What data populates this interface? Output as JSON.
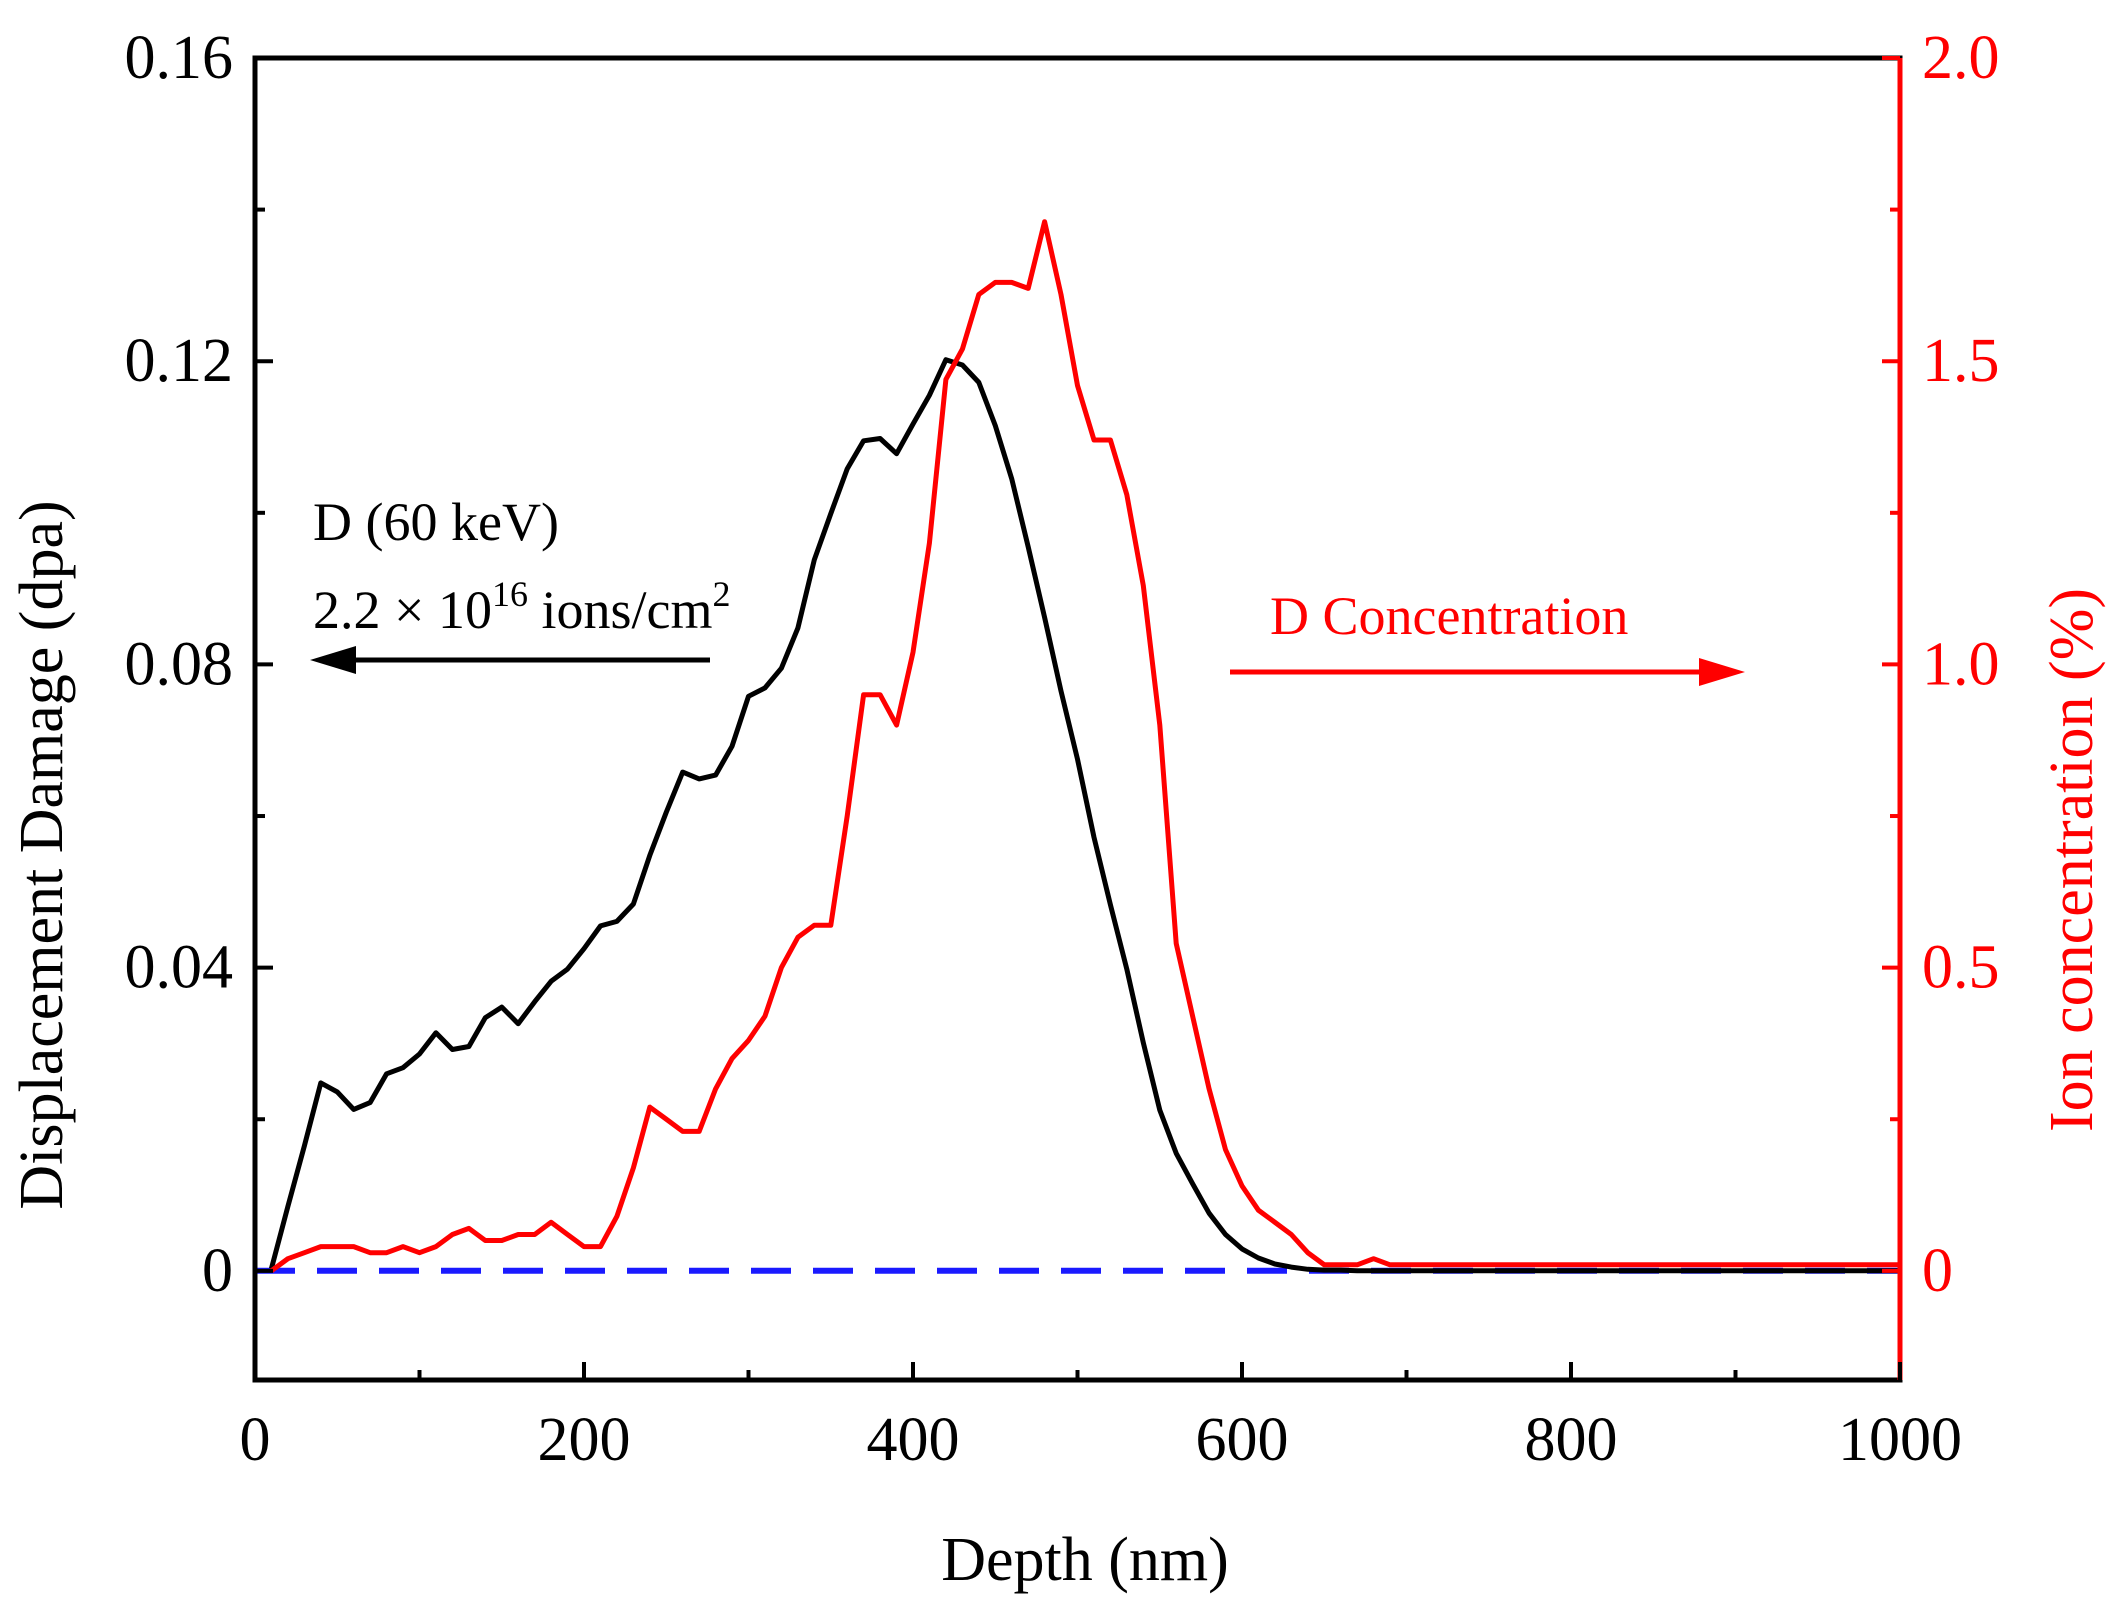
{
  "chart_data": {
    "type": "line",
    "title": "",
    "xlabel": "Depth (nm)",
    "ylabel": "Displacement Damage (dpa)",
    "y2label": "Ion concentration (%)",
    "xlim": [
      0,
      1000
    ],
    "ylim": [
      -0.0144,
      0.16
    ],
    "y2lim": [
      -0.18,
      2.0
    ],
    "xticks": [
      0,
      200,
      400,
      600,
      800,
      1000
    ],
    "xtick_labels": [
      "0",
      "200",
      "400",
      "600",
      "800",
      "1000"
    ],
    "yticks": [
      0,
      0.04,
      0.08,
      0.12,
      0.16
    ],
    "ytick_labels": [
      "0",
      "0.04",
      "0.08",
      "0.12",
      "0.16"
    ],
    "y2ticks": [
      0,
      0.5,
      1.0,
      1.5,
      2.0
    ],
    "y2tick_labels": [
      "0",
      "0.5",
      "1.0",
      "1.5",
      "2.0"
    ],
    "grid": false,
    "colors": {
      "damage": "#000000",
      "concentration": "#ff0000",
      "baseline": "#1a1aff",
      "frame": "#000000"
    },
    "series": [
      {
        "name": "Displacement Damage",
        "axis": "left",
        "color": "#000000",
        "x": [
          10,
          20,
          30,
          40,
          50,
          60,
          70,
          80,
          90,
          100,
          110,
          120,
          130,
          140,
          150,
          160,
          170,
          180,
          190,
          200,
          210,
          220,
          230,
          240,
          250,
          260,
          270,
          280,
          290,
          300,
          310,
          320,
          330,
          340,
          350,
          360,
          370,
          380,
          390,
          400,
          410,
          420,
          430,
          440,
          450,
          460,
          470,
          480,
          490,
          500,
          510,
          520,
          530,
          540,
          550,
          560,
          570,
          580,
          590,
          600,
          610,
          620,
          630,
          640,
          650,
          660,
          670,
          680,
          690,
          700,
          720,
          750,
          800,
          850,
          900,
          950,
          1000
        ],
        "values": [
          0.0003,
          0.0085,
          0.0165,
          0.0248,
          0.0236,
          0.0213,
          0.0222,
          0.026,
          0.0268,
          0.0286,
          0.0314,
          0.0292,
          0.0296,
          0.0334,
          0.0348,
          0.0326,
          0.0355,
          0.0382,
          0.0398,
          0.0425,
          0.0455,
          0.0461,
          0.0484,
          0.0548,
          0.0605,
          0.0658,
          0.0649,
          0.0654,
          0.0692,
          0.0758,
          0.0769,
          0.0795,
          0.0848,
          0.0938,
          0.0999,
          0.1058,
          0.1095,
          0.1098,
          0.1078,
          0.1117,
          0.1155,
          0.1202,
          0.1195,
          0.1172,
          0.1115,
          0.1045,
          0.0955,
          0.0862,
          0.0765,
          0.0675,
          0.0572,
          0.0483,
          0.0398,
          0.0301,
          0.0212,
          0.0155,
          0.0115,
          0.0076,
          0.0048,
          0.0029,
          0.0017,
          0.0009,
          0.0005,
          0.0002,
          0.0001,
          0.0001,
          0.0,
          0.0,
          0.0,
          0.0,
          0.0,
          0.0,
          0.0,
          0.0,
          0.0,
          0.0,
          0.0
        ]
      },
      {
        "name": "D Concentration",
        "axis": "right",
        "color": "#ff0000",
        "x": [
          10,
          20,
          30,
          40,
          50,
          60,
          70,
          80,
          90,
          100,
          110,
          120,
          130,
          140,
          150,
          160,
          170,
          180,
          190,
          200,
          210,
          220,
          230,
          240,
          250,
          260,
          270,
          280,
          290,
          300,
          310,
          320,
          330,
          340,
          350,
          360,
          370,
          380,
          390,
          400,
          410,
          420,
          430,
          440,
          450,
          460,
          470,
          480,
          490,
          500,
          510,
          520,
          530,
          540,
          550,
          560,
          570,
          580,
          590,
          600,
          610,
          620,
          630,
          640,
          650,
          660,
          670,
          680,
          690,
          700,
          710,
          750,
          800,
          850,
          900,
          950,
          1000
        ],
        "values": [
          0.0,
          0.02,
          0.03,
          0.04,
          0.04,
          0.04,
          0.03,
          0.03,
          0.04,
          0.03,
          0.04,
          0.06,
          0.07,
          0.05,
          0.05,
          0.06,
          0.06,
          0.08,
          0.06,
          0.04,
          0.04,
          0.09,
          0.17,
          0.27,
          0.25,
          0.23,
          0.23,
          0.3,
          0.35,
          0.38,
          0.42,
          0.5,
          0.55,
          0.57,
          0.57,
          0.75,
          0.95,
          0.95,
          0.9,
          1.02,
          1.2,
          1.47,
          1.52,
          1.61,
          1.63,
          1.63,
          1.62,
          1.73,
          1.61,
          1.46,
          1.37,
          1.37,
          1.28,
          1.13,
          0.9,
          0.54,
          0.42,
          0.3,
          0.2,
          0.14,
          0.1,
          0.08,
          0.06,
          0.03,
          0.01,
          0.01,
          0.01,
          0.02,
          0.01,
          0.01,
          0.01,
          0.01,
          0.01,
          0.01,
          0.01,
          0.01,
          0.01
        ]
      },
      {
        "name": "Zero baseline",
        "axis": "left",
        "color": "#1a1aff",
        "style": "dashed",
        "x": [
          0,
          1000
        ],
        "values": [
          0,
          0
        ]
      }
    ],
    "annotations": {
      "ion_line": "D (60 keV)",
      "fluence_prefix": "2.2 × 10",
      "fluence_exp": "16",
      "fluence_unit": " ions/cm",
      "fluence_unit_exp": "2",
      "conc_label": "D Concentration"
    }
  }
}
